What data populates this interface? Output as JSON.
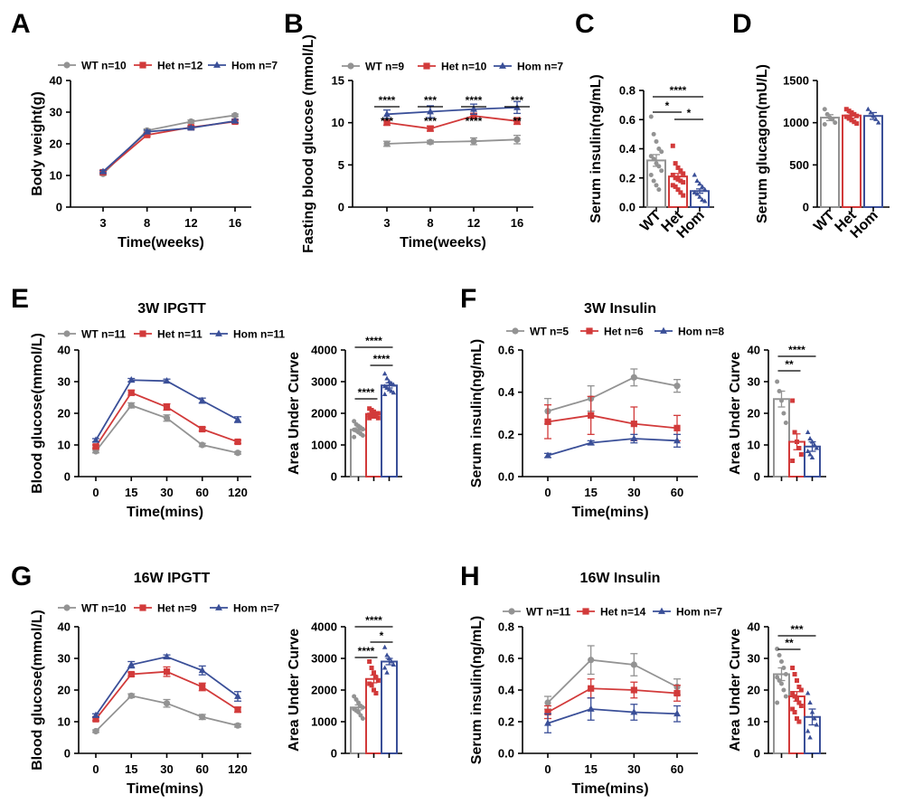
{
  "colors": {
    "WT": "#939393",
    "Het": "#d23a3a",
    "Hom": "#3a4f98"
  },
  "chart_data": [
    {
      "panel": "A",
      "type": "line",
      "title": "",
      "xlabel": "Time(weeks)",
      "ylabel": "Body weight(g)",
      "categories": [
        "3",
        "8",
        "12",
        "16"
      ],
      "yticks": [
        "0",
        "10",
        "20",
        "30",
        "40"
      ],
      "ylim": [
        0,
        40
      ],
      "legend": [
        "WT n=10",
        "Het n=12",
        "Hom n=7"
      ],
      "series": [
        {
          "name": "WT",
          "values": [
            10.5,
            24.2,
            27.0,
            29.0
          ],
          "err": [
            0.4,
            0.5,
            0.5,
            0.4
          ]
        },
        {
          "name": "Het",
          "values": [
            11.0,
            22.8,
            25.2,
            27.0
          ],
          "err": [
            0.4,
            0.5,
            0.5,
            0.5
          ]
        },
        {
          "name": "Hom",
          "values": [
            11.2,
            23.8,
            25.0,
            27.2
          ],
          "err": [
            0.4,
            0.5,
            0.5,
            0.5
          ]
        }
      ]
    },
    {
      "panel": "B",
      "type": "line",
      "title": "",
      "xlabel": "Time(weeks)",
      "ylabel": "Fasting blood glucose (mmol/L)",
      "categories": [
        "3",
        "8",
        "12",
        "16"
      ],
      "yticks": [
        "0",
        "5",
        "10",
        "15"
      ],
      "ylim": [
        0,
        15
      ],
      "legend": [
        "WT n=9",
        "Het n=10",
        "Hom n=7"
      ],
      "series": [
        {
          "name": "WT",
          "values": [
            7.5,
            7.7,
            7.8,
            8.0
          ],
          "err": [
            0.3,
            0.2,
            0.4,
            0.5
          ]
        },
        {
          "name": "Het",
          "values": [
            10.0,
            9.3,
            10.8,
            10.2
          ],
          "err": [
            0.3,
            0.3,
            0.3,
            0.4
          ]
        },
        {
          "name": "Hom",
          "values": [
            11.0,
            11.3,
            11.6,
            11.8
          ],
          "err": [
            0.5,
            0.7,
            0.6,
            0.7
          ]
        }
      ],
      "annotations": [
        "****",
        "***",
        "***",
        "***",
        "****",
        "****",
        "***",
        "**"
      ]
    },
    {
      "panel": "C",
      "type": "bar",
      "title": "",
      "xlabel": "",
      "ylabel": "Serum insulin(ng/mL)",
      "categories": [
        "WT",
        "Het",
        "Hom"
      ],
      "yticks": [
        "0.0",
        "0.2",
        "0.4",
        "0.6",
        "0.8"
      ],
      "ylim": [
        0,
        0.8
      ],
      "values": [
        0.32,
        0.21,
        0.11
      ],
      "err": [
        0.04,
        0.02,
        0.015
      ],
      "points": [
        [
          0.62,
          0.5,
          0.45,
          0.4,
          0.38,
          0.35,
          0.33,
          0.3,
          0.28,
          0.25,
          0.22,
          0.18,
          0.15,
          0.12
        ],
        [
          0.42,
          0.3,
          0.27,
          0.25,
          0.23,
          0.22,
          0.2,
          0.19,
          0.18,
          0.17,
          0.15,
          0.14,
          0.12,
          0.1,
          0.08
        ],
        [
          0.22,
          0.18,
          0.16,
          0.14,
          0.12,
          0.1,
          0.09,
          0.07,
          0.05,
          0.04
        ]
      ],
      "significance": [
        "****",
        "*",
        "*"
      ]
    },
    {
      "panel": "D",
      "type": "bar",
      "title": "",
      "xlabel": "",
      "ylabel": "Serum glucagon(mU/L)",
      "categories": [
        "WT",
        "Het",
        "Hom"
      ],
      "yticks": [
        "0",
        "500",
        "1000",
        "1500"
      ],
      "ylim": [
        0,
        1500
      ],
      "values": [
        1060,
        1085,
        1080
      ],
      "err": [
        35,
        30,
        40
      ],
      "points": [
        [
          1160,
          1100,
          1060,
          1040,
          1000,
          980
        ],
        [
          1160,
          1140,
          1120,
          1100,
          1080,
          1070,
          1050,
          1030,
          1010,
          990
        ],
        [
          1160,
          1120,
          1080,
          1040,
          1000
        ]
      ],
      "significance": []
    },
    {
      "panel": "E",
      "type": "line",
      "title": "3W IPGTT",
      "xlabel": "Time(mins)",
      "ylabel": "Blood glucose(mmol/L)",
      "categories": [
        "0",
        "15",
        "30",
        "60",
        "120"
      ],
      "yticks": [
        "0",
        "10",
        "20",
        "30",
        "40"
      ],
      "ylim": [
        0,
        40
      ],
      "legend": [
        "WT n=11",
        "Het n=11",
        "Hom n=11"
      ],
      "series": [
        {
          "name": "WT",
          "values": [
            8.0,
            22.5,
            18.5,
            10.0,
            7.5
          ],
          "err": [
            0.5,
            0.8,
            1.0,
            0.5,
            0.4
          ]
        },
        {
          "name": "Het",
          "values": [
            9.5,
            26.5,
            22.0,
            15.0,
            11.0
          ],
          "err": [
            0.5,
            0.8,
            1.0,
            0.6,
            0.5
          ]
        },
        {
          "name": "Hom",
          "values": [
            11.5,
            30.5,
            30.2,
            24.0,
            18.0
          ],
          "err": [
            0.5,
            0.5,
            0.6,
            0.8,
            0.9
          ]
        }
      ]
    },
    {
      "panel": "E-AUC",
      "type": "bar",
      "title": "",
      "xlabel": "",
      "ylabel": "Area Under Curve",
      "categories": [
        "WT",
        "Het",
        "Hom"
      ],
      "yticks": [
        "0",
        "1000",
        "2000",
        "3000",
        "4000"
      ],
      "ylim": [
        0,
        4000
      ],
      "values": [
        1480,
        1980,
        2880
      ],
      "err": [
        60,
        50,
        80
      ],
      "points": [
        [
          1750,
          1650,
          1600,
          1550,
          1500,
          1480,
          1450,
          1400,
          1350,
          1300,
          1250
        ],
        [
          2150,
          2100,
          2050,
          2000,
          2000,
          1950,
          1950,
          1900,
          1900,
          1850,
          1850
        ],
        [
          3250,
          3100,
          3000,
          2950,
          2900,
          2850,
          2800,
          2750,
          2700,
          2650,
          2600
        ]
      ],
      "significance": [
        "****",
        "****",
        "****"
      ]
    },
    {
      "panel": "F",
      "type": "line",
      "title": "3W Insulin",
      "xlabel": "Time(mins)",
      "ylabel": "Serum insulin(ng/mL)",
      "categories": [
        "0",
        "15",
        "30",
        "60"
      ],
      "yticks": [
        "0.0",
        "0.2",
        "0.4",
        "0.6"
      ],
      "ylim": [
        0,
        0.6
      ],
      "legend": [
        "WT n=5",
        "Het n=6",
        "Hom n=8"
      ],
      "series": [
        {
          "name": "WT",
          "values": [
            0.31,
            0.37,
            0.47,
            0.43
          ],
          "err": [
            0.06,
            0.06,
            0.04,
            0.03
          ]
        },
        {
          "name": "Het",
          "values": [
            0.26,
            0.29,
            0.25,
            0.23
          ],
          "err": [
            0.08,
            0.09,
            0.08,
            0.06
          ]
        },
        {
          "name": "Hom",
          "values": [
            0.1,
            0.16,
            0.18,
            0.17
          ],
          "err": [
            0.01,
            0.01,
            0.02,
            0.03
          ]
        }
      ]
    },
    {
      "panel": "F-AUC",
      "type": "bar",
      "title": "",
      "xlabel": "",
      "ylabel": "Area Under Curve",
      "categories": [
        "WT",
        "Het",
        "Hom"
      ],
      "yticks": [
        "0",
        "10",
        "20",
        "30",
        "40"
      ],
      "ylim": [
        0,
        40
      ],
      "values": [
        24.5,
        11.0,
        9.5
      ],
      "err": [
        2.5,
        2.5,
        1.5
      ],
      "points": [
        [
          30,
          27,
          24,
          20,
          17
        ],
        [
          24,
          14,
          11,
          9,
          7,
          5
        ],
        [
          14,
          12,
          11,
          10,
          9,
          8,
          7,
          6
        ]
      ],
      "significance": [
        "****",
        "**"
      ]
    },
    {
      "panel": "G",
      "type": "line",
      "title": "16W IPGTT",
      "xlabel": "Time(mins)",
      "ylabel": "Blood glucose(mmol/L)",
      "categories": [
        "0",
        "15",
        "30",
        "60",
        "120"
      ],
      "yticks": [
        "0",
        "10",
        "20",
        "30",
        "40"
      ],
      "ylim": [
        0,
        40
      ],
      "legend": [
        "WT n=10",
        "Het n=9",
        "Hom n=7"
      ],
      "series": [
        {
          "name": "WT",
          "values": [
            7.0,
            18.2,
            15.8,
            11.5,
            8.8
          ],
          "err": [
            0.4,
            0.6,
            1.2,
            0.8,
            0.5
          ]
        },
        {
          "name": "Het",
          "values": [
            10.8,
            25.0,
            25.8,
            21.0,
            13.8
          ],
          "err": [
            0.5,
            0.6,
            1.5,
            1.2,
            0.8
          ]
        },
        {
          "name": "Hom",
          "values": [
            12.0,
            28.0,
            30.5,
            26.2,
            18.0
          ],
          "err": [
            0.5,
            1.0,
            0.6,
            1.4,
            1.5
          ]
        }
      ]
    },
    {
      "panel": "G-AUC",
      "type": "bar",
      "title": "",
      "xlabel": "",
      "ylabel": "Area Under Curve",
      "categories": [
        "WT",
        "Het",
        "Hom"
      ],
      "yticks": [
        "0",
        "1000",
        "2000",
        "3000",
        "4000"
      ],
      "ylim": [
        0,
        4000
      ],
      "values": [
        1450,
        2350,
        2900
      ],
      "err": [
        80,
        120,
        100
      ],
      "points": [
        [
          1800,
          1700,
          1600,
          1500,
          1450,
          1400,
          1350,
          1300,
          1200,
          1100
        ],
        [
          2900,
          2700,
          2550,
          2400,
          2300,
          2200,
          2150,
          2000,
          1900
        ],
        [
          3350,
          3100,
          3000,
          2900,
          2800,
          2700,
          2550
        ]
      ],
      "significance": [
        "****",
        "****",
        "*"
      ]
    },
    {
      "panel": "H",
      "type": "line",
      "title": "16W Insulin",
      "xlabel": "Time(mins)",
      "ylabel": "Serum insulin(ng/mL)",
      "categories": [
        "0",
        "15",
        "30",
        "60"
      ],
      "yticks": [
        "0.0",
        "0.2",
        "0.4",
        "0.6",
        "0.8"
      ],
      "ylim": [
        0,
        0.8
      ],
      "legend": [
        "WT n=11",
        "Het n=14",
        "Hom n=7"
      ],
      "series": [
        {
          "name": "WT",
          "values": [
            0.32,
            0.59,
            0.56,
            0.42
          ],
          "err": [
            0.04,
            0.09,
            0.07,
            0.05
          ]
        },
        {
          "name": "Het",
          "values": [
            0.26,
            0.41,
            0.4,
            0.38
          ],
          "err": [
            0.04,
            0.06,
            0.05,
            0.05
          ]
        },
        {
          "name": "Hom",
          "values": [
            0.19,
            0.28,
            0.26,
            0.25
          ],
          "err": [
            0.06,
            0.07,
            0.05,
            0.05
          ]
        }
      ]
    },
    {
      "panel": "H-AUC",
      "type": "bar",
      "title": "",
      "xlabel": "",
      "ylabel": "Area Under Curve",
      "categories": [
        "WT",
        "Het",
        "Hom"
      ],
      "yticks": [
        "0",
        "10",
        "20",
        "30",
        "40"
      ],
      "ylim": [
        0,
        40
      ],
      "values": [
        25.0,
        18.0,
        11.5
      ],
      "err": [
        2.0,
        1.5,
        2.5
      ],
      "points": [
        [
          33,
          31,
          29,
          27,
          25,
          24,
          23,
          22,
          20,
          18,
          16
        ],
        [
          27,
          25,
          23,
          21,
          20,
          19,
          18,
          17,
          16,
          15,
          14,
          13,
          11,
          10
        ],
        [
          19,
          16,
          13,
          11,
          9,
          7,
          5
        ]
      ],
      "significance": [
        "***",
        "**"
      ]
    }
  ],
  "panel_letters": [
    "A",
    "B",
    "C",
    "D",
    "E",
    "F",
    "G",
    "H"
  ]
}
